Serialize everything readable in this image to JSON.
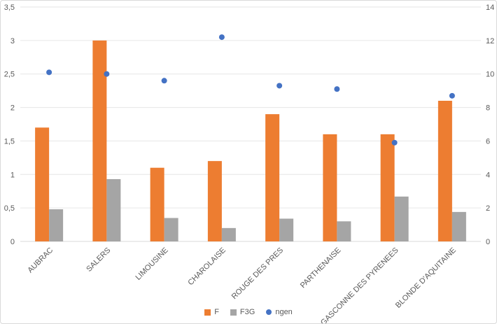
{
  "chart_data": {
    "type": "bar",
    "subtype": "combo-bar-scatter",
    "title": "",
    "xlabel": "",
    "ylabel": "",
    "categories": [
      "AUBRAC",
      "SALERS",
      "LIMOUSINE",
      "CHAROLAISE",
      "ROUGE DES PRES",
      "PARTHENAISE",
      "GASCONNE DES PYRENEES",
      "BLONDE D'AQUITAINE"
    ],
    "series": [
      {
        "name": "F",
        "type": "bar",
        "axis": "left",
        "color": "#ED7D31",
        "values": [
          1.7,
          3.0,
          1.1,
          1.2,
          1.9,
          1.6,
          1.6,
          2.1
        ]
      },
      {
        "name": "F3G",
        "type": "bar",
        "axis": "left",
        "color": "#A5A5A5",
        "values": [
          0.48,
          0.93,
          0.35,
          0.2,
          0.34,
          0.3,
          0.67,
          0.44
        ]
      },
      {
        "name": "ngen",
        "type": "scatter",
        "axis": "right",
        "color": "#4472C4",
        "values": [
          10.1,
          10.0,
          9.6,
          12.2,
          9.3,
          9.1,
          5.9,
          8.7
        ]
      }
    ],
    "left_axis": {
      "min": 0,
      "max": 3.5,
      "step": 0.5,
      "labels": [
        "0",
        "0,5",
        "1",
        "1,5",
        "2",
        "2,5",
        "3",
        "3,5"
      ]
    },
    "right_axis": {
      "min": 0,
      "max": 14,
      "step": 2,
      "labels": [
        "0",
        "2",
        "4",
        "6",
        "8",
        "10",
        "12",
        "14"
      ]
    },
    "grid": true,
    "legend_position": "bottom"
  },
  "styles": {
    "grid_color": "#e6e6e6",
    "baseline_color": "#d9d9d9",
    "axis_text_color": "#595959",
    "frame_border_color": "#d9d9d9",
    "background_color": "#ffffff"
  }
}
